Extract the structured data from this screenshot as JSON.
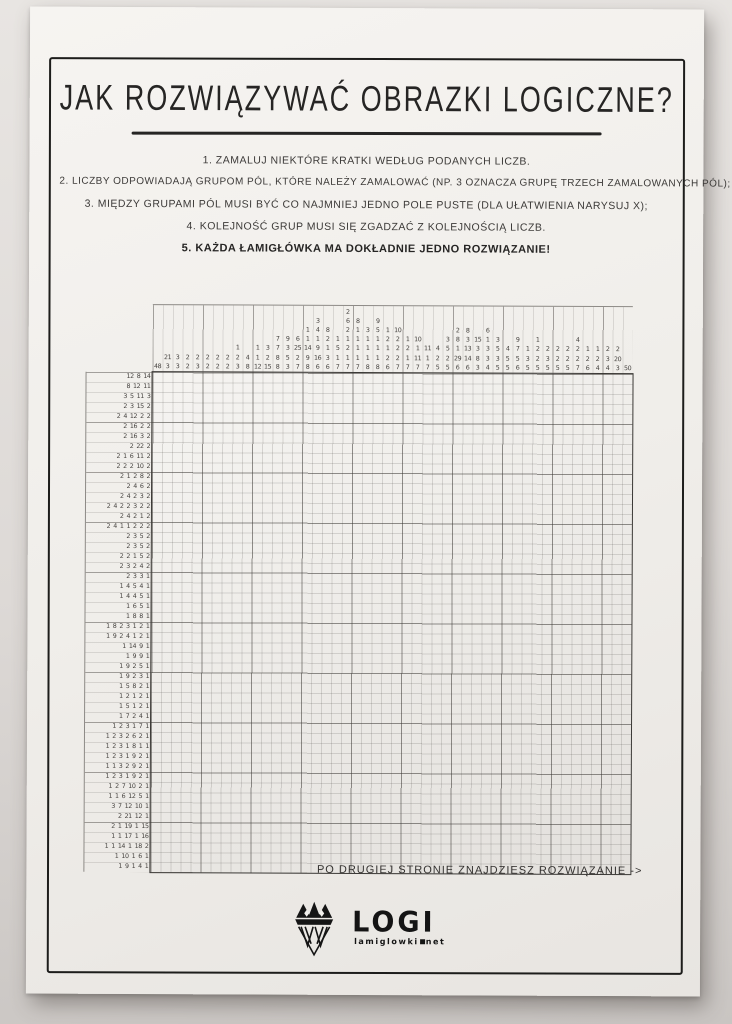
{
  "poster": {
    "title": "JAK ROZWIĄZYWAĆ OBRAZKI LOGICZNE?",
    "rules": [
      "1. ZAMALUJ NIEKTÓRE KRATKI WEDŁUG PODANYCH LICZB.",
      "2. LICZBY ODPOWIADAJĄ GRUPOM PÓL, KTÓRE NALEŻY ZAMALOWAĆ (NP. 3 OZNACZA GRUPĘ TRZECH ZAMALOWANYCH PÓL);",
      "3. MIĘDZY GRUPAMI PÓL MUSI BYĆ CO NAJMNIEJ JEDNO POLE PUSTE (DLA UŁATWIENIA NARYSUJ X);",
      "4. KOLEJNOŚĆ GRUP MUSI SIĘ ZGADZAĆ Z KOLEJNOŚCIĄ LICZB.",
      "5. KAŻDA ŁAMIGŁÓWKA MA DOKŁADNIE JEDNO ROZWIĄZANIE!"
    ],
    "footer_note": "PO DRUGIEJ STRONIE ZNAJDZIESZ ROZWIĄZANIE  ->",
    "logo": {
      "brand": "LOGI",
      "domain_name": "lamiglowki",
      "domain_tld": "net",
      "icon": "crown-icon"
    },
    "colors": {
      "wall": "#ddd9d6",
      "paper": "#f2f0ec",
      "ink": "#262524",
      "grid_thin": "#c5c2bd",
      "grid_bold": "#6f6c68",
      "frame": "#1d1d1b"
    }
  },
  "puzzle": {
    "cols": 48,
    "rows": 50,
    "col_clues": [
      [
        48
      ],
      [
        21,
        3
      ],
      [
        3,
        3
      ],
      [
        2,
        2
      ],
      [
        2,
        3
      ],
      [
        2,
        2
      ],
      [
        2,
        2
      ],
      [
        2,
        2
      ],
      [
        1,
        2,
        3
      ],
      [
        4,
        8
      ],
      [
        1,
        1,
        12
      ],
      [
        3,
        2,
        15
      ],
      [
        7,
        7,
        8,
        8
      ],
      [
        9,
        3,
        5,
        3
      ],
      [
        6,
        25,
        2,
        7
      ],
      [
        1,
        1,
        14,
        9,
        8
      ],
      [
        3,
        4,
        1,
        9,
        16,
        6
      ],
      [
        8,
        2,
        1,
        3,
        6
      ],
      [
        1,
        5,
        1,
        7
      ],
      [
        2,
        6,
        2,
        1,
        2,
        1,
        7
      ],
      [
        8,
        1,
        1,
        1,
        1,
        7
      ],
      [
        3,
        1,
        1,
        1,
        8
      ],
      [
        9,
        5,
        1,
        1,
        1,
        8
      ],
      [
        1,
        2,
        1,
        2,
        6
      ],
      [
        10,
        2,
        2,
        2,
        7
      ],
      [
        1,
        2,
        1,
        7
      ],
      [
        10,
        1,
        11,
        7
      ],
      [
        11,
        1,
        7
      ],
      [
        4,
        2,
        5
      ],
      [
        3,
        5,
        2,
        5
      ],
      [
        2,
        8,
        1,
        29,
        6
      ],
      [
        8,
        3,
        13,
        14,
        6
      ],
      [
        15,
        3,
        8,
        3
      ],
      [
        6,
        1,
        3,
        3,
        4
      ],
      [
        3,
        5,
        3,
        5
      ],
      [
        4,
        5,
        5
      ],
      [
        9,
        7,
        5,
        6
      ],
      [
        1,
        3,
        5
      ],
      [
        1,
        2,
        2,
        5
      ],
      [
        2,
        3,
        5
      ],
      [
        2,
        2,
        5
      ],
      [
        2,
        2,
        5
      ],
      [
        4,
        2,
        2,
        7
      ],
      [
        1,
        2,
        6
      ],
      [
        1,
        2,
        4
      ],
      [
        2,
        3,
        4
      ],
      [
        2,
        20,
        3
      ],
      [
        50
      ]
    ],
    "row_clues": [
      [
        12,
        8,
        14
      ],
      [
        8,
        12,
        11
      ],
      [
        3,
        5,
        11,
        3
      ],
      [
        2,
        3,
        15,
        2
      ],
      [
        2,
        4,
        12,
        2,
        2
      ],
      [
        2,
        16,
        2,
        2
      ],
      [
        2,
        16,
        3,
        2
      ],
      [
        2,
        22,
        2
      ],
      [
        2,
        1,
        6,
        11,
        2
      ],
      [
        2,
        2,
        2,
        10,
        2
      ],
      [
        2,
        1,
        2,
        8,
        2
      ],
      [
        2,
        4,
        6,
        2
      ],
      [
        2,
        4,
        2,
        3,
        2
      ],
      [
        2,
        4,
        2,
        2,
        3,
        2,
        2
      ],
      [
        2,
        4,
        2,
        1,
        2
      ],
      [
        2,
        4,
        1,
        1,
        2,
        2,
        2
      ],
      [
        2,
        3,
        5,
        2
      ],
      [
        2,
        3,
        5,
        2
      ],
      [
        2,
        2,
        1,
        5,
        2
      ],
      [
        2,
        3,
        2,
        4,
        2
      ],
      [
        2,
        3,
        3,
        1
      ],
      [
        1,
        4,
        5,
        4,
        1
      ],
      [
        1,
        4,
        4,
        5,
        1
      ],
      [
        1,
        6,
        5,
        1
      ],
      [
        1,
        8,
        8,
        1
      ],
      [
        1,
        8,
        2,
        3,
        1,
        2,
        1
      ],
      [
        1,
        9,
        2,
        4,
        1,
        2,
        1
      ],
      [
        1,
        14,
        9,
        1
      ],
      [
        1,
        9,
        9,
        1
      ],
      [
        1,
        9,
        2,
        5,
        1
      ],
      [
        1,
        9,
        2,
        3,
        1
      ],
      [
        1,
        5,
        8,
        2,
        1
      ],
      [
        1,
        2,
        1,
        2,
        1
      ],
      [
        1,
        5,
        1,
        2,
        1
      ],
      [
        1,
        7,
        2,
        4,
        1
      ],
      [
        1,
        2,
        3,
        1,
        7,
        1
      ],
      [
        1,
        2,
        3,
        2,
        6,
        2,
        1
      ],
      [
        1,
        2,
        3,
        1,
        8,
        1,
        1
      ],
      [
        1,
        2,
        3,
        1,
        9,
        2,
        1
      ],
      [
        1,
        1,
        3,
        2,
        9,
        2,
        1
      ],
      [
        1,
        2,
        3,
        1,
        9,
        2,
        1
      ],
      [
        1,
        2,
        7,
        10,
        2,
        1
      ],
      [
        1,
        1,
        6,
        12,
        5,
        1
      ],
      [
        3,
        7,
        12,
        10,
        1
      ],
      [
        2,
        21,
        12,
        1
      ],
      [
        2,
        1,
        19,
        1,
        15
      ],
      [
        1,
        1,
        17,
        1,
        16
      ],
      [
        1,
        1,
        14,
        1,
        18,
        2
      ],
      [
        1,
        10,
        1,
        6,
        1
      ],
      [
        1,
        9,
        1,
        4,
        1
      ]
    ]
  }
}
